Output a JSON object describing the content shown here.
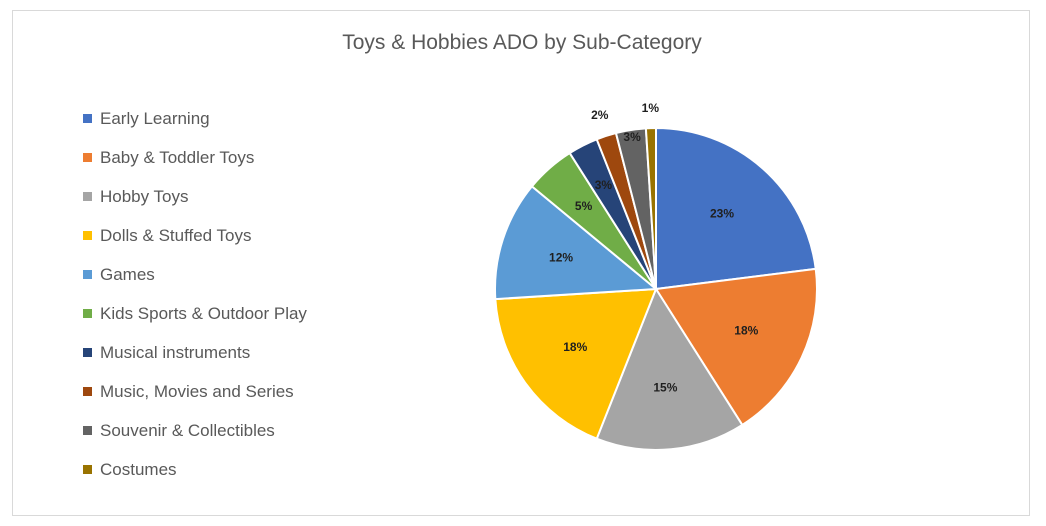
{
  "chart_data": {
    "type": "pie",
    "title": "Toys & Hobbies ADO by Sub-Category",
    "legend_position": "left",
    "categories": [
      "Early Learning",
      "Baby & Toddler Toys",
      "Hobby Toys",
      "Dolls & Stuffed Toys",
      "Games",
      "Kids Sports & Outdoor Play",
      "Musical instruments",
      "Music, Movies and Series",
      "Souvenir & Collectibles",
      "Costumes"
    ],
    "values": [
      23,
      18,
      15,
      18,
      12,
      5,
      3,
      2,
      3,
      1
    ],
    "data_labels": [
      "23%",
      "18%",
      "15%",
      "18%",
      "12%",
      "5%",
      "3%",
      "2%",
      "3%",
      "1%"
    ],
    "colors": [
      "#4472c4",
      "#ed7d31",
      "#a5a5a5",
      "#ffc000",
      "#5b9bd5",
      "#70ad47",
      "#264478",
      "#9e480e",
      "#636363",
      "#997300"
    ]
  }
}
